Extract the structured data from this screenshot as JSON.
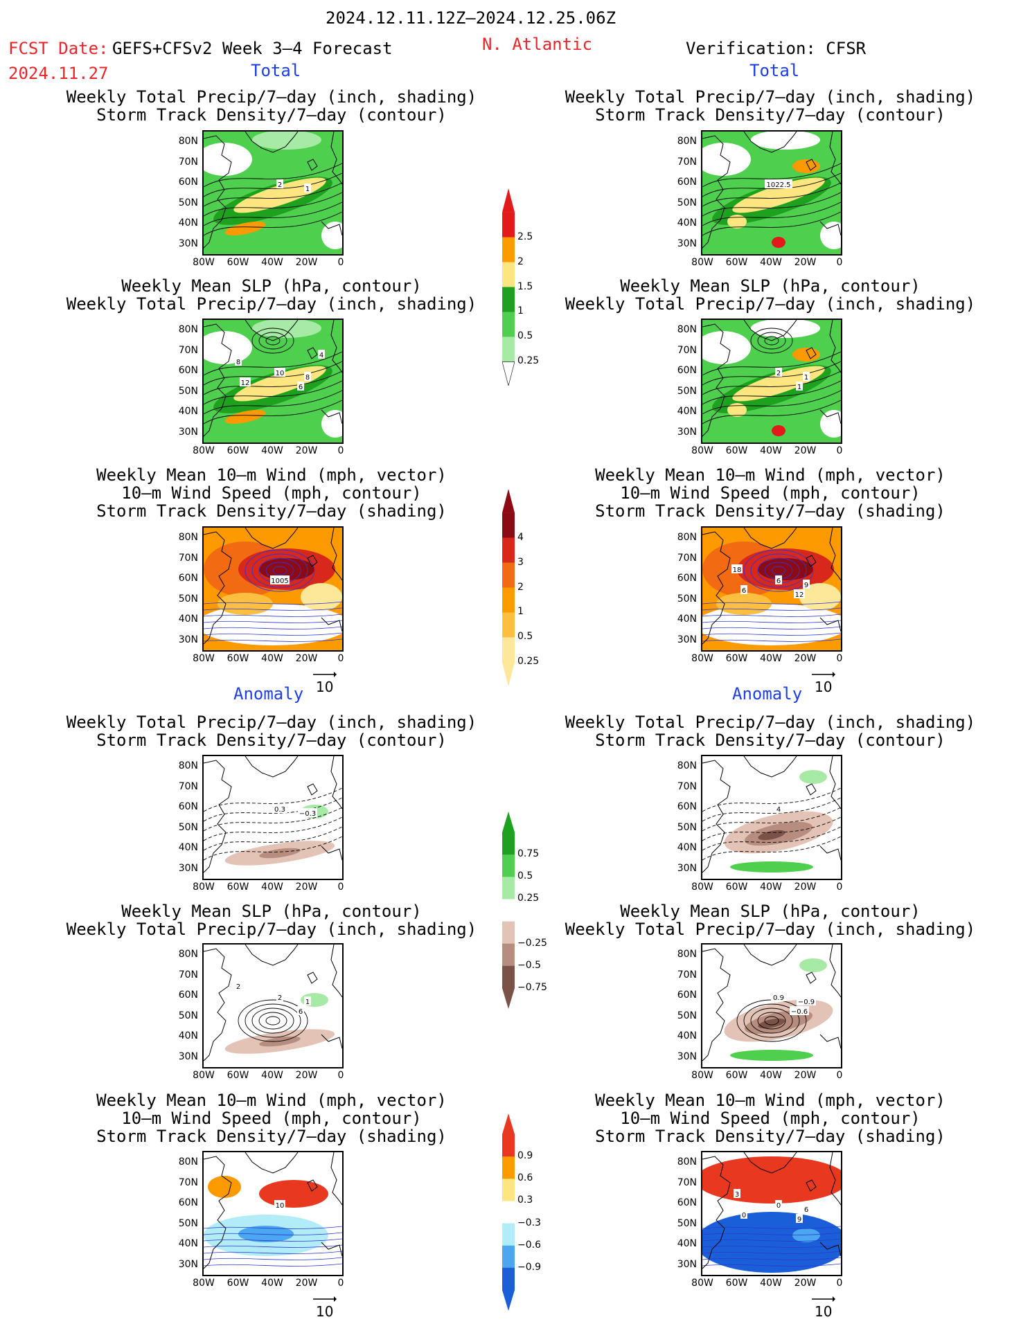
{
  "header": {
    "date_range": "2024.12.11.12Z–2024.12.25.06Z",
    "fcst_label": "FCST Date:",
    "fcst_model": "GEFS+CFSv2 Week 3–4 Forecast",
    "fcst_date": "2024.11.27",
    "region": "N. Atlantic",
    "verification": "Verification: CFSR"
  },
  "sections": {
    "total_left": "Total",
    "total_right": "Total",
    "anomaly_left": "Anomaly",
    "anomaly_right": "Anomaly"
  },
  "titles": {
    "precip_storm": [
      "Weekly Total Precip/7–day (inch, shading)",
      "Storm Track Density/7–day (contour)"
    ],
    "slp_precip": [
      "Weekly Mean SLP (hPa, contour)",
      "Weekly Total Precip/7–day (inch, shading)"
    ],
    "wind_storm": [
      "Weekly Mean 10–m Wind (mph, vector)",
      "10–m Wind Speed (mph, contour)",
      "Storm Track Density/7–day (shading)"
    ]
  },
  "axes": {
    "lat_ticks": [
      "80N",
      "70N",
      "60N",
      "50N",
      "40N",
      "30N"
    ],
    "lon_ticks": [
      "80W",
      "60W",
      "40W",
      "20W",
      "0"
    ]
  },
  "vector_ref": "10",
  "contour_labels": {
    "p1": [
      "2",
      "1"
    ],
    "p2": [
      "1022.5"
    ],
    "p3": [
      "10",
      "8",
      "6",
      "8",
      "12",
      "4"
    ],
    "p4": [
      "2",
      "1",
      "1"
    ],
    "p5": [
      "1005"
    ],
    "p6": [
      "6",
      "9",
      "12",
      "18",
      "6"
    ],
    "p7": [
      "0.3",
      "−0.3"
    ],
    "p8": [
      "4"
    ],
    "p9": [
      "2",
      "1",
      "6",
      "2"
    ],
    "p10": [
      "0.9",
      "−0.9",
      "−0.6"
    ],
    "p11": [
      "10"
    ],
    "p12": [
      "0",
      "6",
      "9",
      "3",
      "0"
    ]
  },
  "colorbars": {
    "precip": {
      "labels": [
        "2.5",
        "2",
        "1.5",
        "1",
        "0.5",
        "0.25"
      ],
      "colors": [
        "#e31a1c",
        "#fd9a00",
        "#fde680",
        "#1ea11e",
        "#4ecf4e",
        "#a6eaa6"
      ]
    },
    "storm": {
      "labels": [
        "4",
        "3",
        "2",
        "1",
        "0.5",
        "0.25"
      ],
      "colors": [
        "#8b0a14",
        "#d8281c",
        "#f26a12",
        "#fd9a00",
        "#fdbf40",
        "#fde89a"
      ]
    },
    "precip_anom": {
      "labels": [
        "0.75",
        "0.5",
        "0.25",
        "−0.25",
        "−0.5",
        "−0.75"
      ],
      "colors": [
        "#1ea11e",
        "#4ecf4e",
        "#a6eaa6",
        "#ffffff",
        "#e3c3b6",
        "#b68d7e",
        "#7a5248"
      ]
    },
    "storm_anom": {
      "labels": [
        "0.9",
        "0.6",
        "0.3",
        "−0.3",
        "−0.6",
        "−0.9"
      ],
      "colors": [
        "#e83820",
        "#fd9a00",
        "#fde680",
        "#ffffff",
        "#b2ecf8",
        "#4aa7f0",
        "#1a5fd8"
      ]
    }
  }
}
